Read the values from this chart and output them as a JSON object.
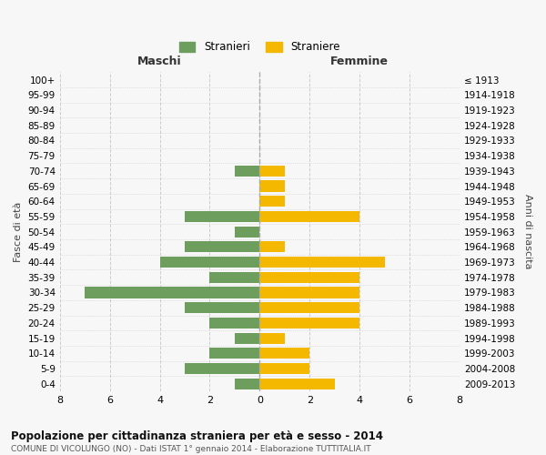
{
  "age_groups": [
    "0-4",
    "5-9",
    "10-14",
    "15-19",
    "20-24",
    "25-29",
    "30-34",
    "35-39",
    "40-44",
    "45-49",
    "50-54",
    "55-59",
    "60-64",
    "65-69",
    "70-74",
    "75-79",
    "80-84",
    "85-89",
    "90-94",
    "95-99",
    "100+"
  ],
  "birth_years": [
    "2009-2013",
    "2004-2008",
    "1999-2003",
    "1994-1998",
    "1989-1993",
    "1984-1988",
    "1979-1983",
    "1974-1978",
    "1969-1973",
    "1964-1968",
    "1959-1963",
    "1954-1958",
    "1949-1953",
    "1944-1948",
    "1939-1943",
    "1934-1938",
    "1929-1933",
    "1924-1928",
    "1919-1923",
    "1914-1918",
    "≤ 1913"
  ],
  "maschi": [
    1,
    3,
    2,
    1,
    2,
    3,
    7,
    2,
    4,
    3,
    1,
    3,
    0,
    0,
    1,
    0,
    0,
    0,
    0,
    0,
    0
  ],
  "femmine": [
    3,
    2,
    2,
    1,
    4,
    4,
    4,
    4,
    5,
    1,
    0,
    4,
    1,
    1,
    1,
    0,
    0,
    0,
    0,
    0,
    0
  ],
  "color_maschi": "#6e9e5e",
  "color_femmine": "#f5b800",
  "title": "Popolazione per cittadinanza straniera per età e sesso - 2014",
  "subtitle": "COMUNE DI VICOLUNGO (NO) - Dati ISTAT 1° gennaio 2014 - Elaborazione TUTTITALIA.IT",
  "xlabel_left": "Maschi",
  "xlabel_right": "Femmine",
  "ylabel_left": "Fasce di età",
  "ylabel_right": "Anni di nascita",
  "legend_maschi": "Stranieri",
  "legend_femmine": "Straniere",
  "xlim": 8,
  "background_color": "#f7f7f7",
  "grid_color": "#cccccc"
}
